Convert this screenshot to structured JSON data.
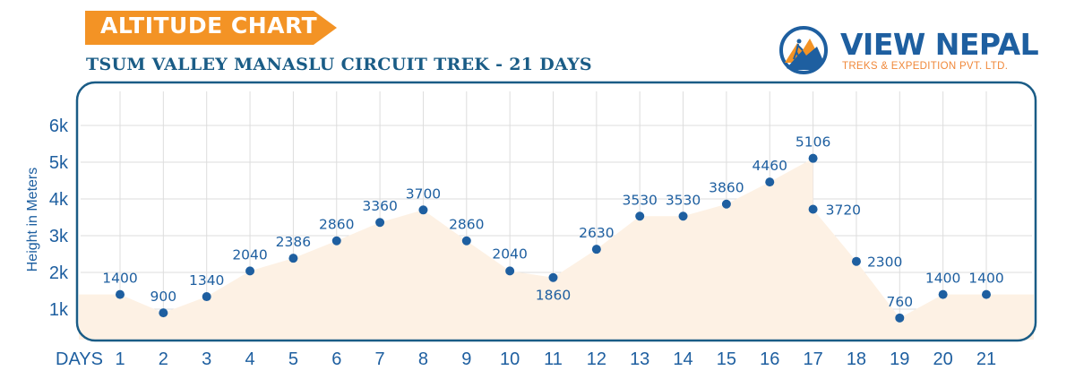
{
  "banner": {
    "text": "ALTITUDE CHART",
    "color": "#f39325"
  },
  "header": {
    "subtitle": "TSUM VALLEY MANASLU CIRCUIT TREK -  21 DAYS"
  },
  "logo": {
    "name": "VIEW NEPAL",
    "tagline": "TREKS & EXPEDITION PVT. LTD.",
    "icon": "mountain-hiker-icon"
  },
  "colors": {
    "primary": "#1e5fa0",
    "area_fill": "#fdf1e4",
    "grid": "#dddddd",
    "frame": "#1a5c86"
  },
  "chart_data": {
    "type": "area",
    "title": "TSUM VALLEY MANASLU CIRCUIT TREK -  21 DAYS",
    "xlabel": "DAYS",
    "ylabel": "Height in Meters",
    "x": [
      1,
      2,
      3,
      4,
      5,
      6,
      7,
      8,
      9,
      10,
      11,
      12,
      13,
      14,
      15,
      16,
      17,
      17,
      18,
      19,
      20,
      21
    ],
    "values": [
      1400,
      900,
      1340,
      2040,
      2386,
      2860,
      3360,
      3700,
      2860,
      2040,
      1860,
      2630,
      3530,
      3530,
      3860,
      4460,
      5106,
      3720,
      2300,
      760,
      1400,
      1400
    ],
    "labels": [
      "1400",
      "900",
      "1340",
      "2040",
      "2386",
      "2860",
      "3360",
      "3700",
      "2860",
      "2040",
      "1860",
      "2630",
      "3530",
      "3530",
      "3860",
      "4460",
      "5106",
      "3720",
      "2300",
      "760",
      "1400",
      "1400"
    ],
    "x_ticks": [
      "1",
      "2",
      "3",
      "4",
      "5",
      "6",
      "7",
      "8",
      "9",
      "10",
      "11",
      "12",
      "13",
      "14",
      "15",
      "16",
      "17",
      "18",
      "19",
      "20",
      "21"
    ],
    "y_ticks": [
      {
        "value": 1000,
        "label": "1k"
      },
      {
        "value": 2000,
        "label": "2k"
      },
      {
        "value": 3000,
        "label": "3k"
      },
      {
        "value": 4000,
        "label": "4k"
      },
      {
        "value": 5000,
        "label": "5k"
      },
      {
        "value": 6000,
        "label": "6k"
      }
    ],
    "ylim": [
      0,
      6500
    ],
    "grid": true,
    "legend": "none"
  }
}
